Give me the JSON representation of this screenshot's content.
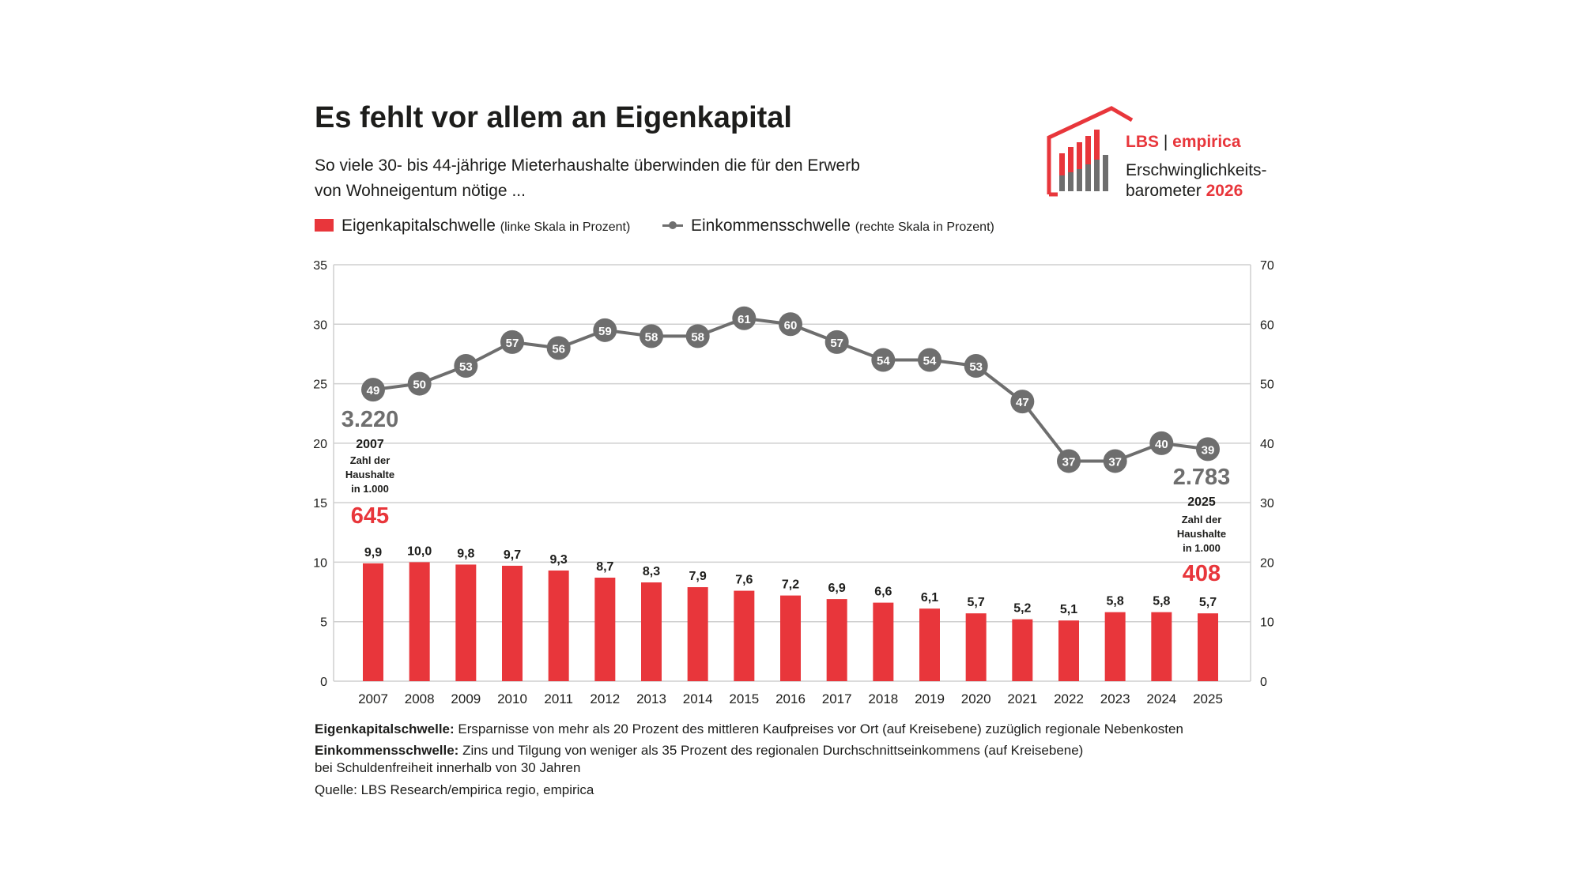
{
  "title": "Es fehlt vor allem an Eigenkapital",
  "subtitle_line1": "So viele 30- bis 44-jährige Mieterhaushalte überwinden die für den Erwerb",
  "subtitle_line2": "von Wohneigentum nötige ...",
  "legend": {
    "bar_label": "Eigenkapitalschwelle",
    "bar_note": "(linke Skala in Prozent)",
    "line_label": "Einkommensschwelle",
    "line_note": "(rechte Skala in Prozent)"
  },
  "logo": {
    "brand": "LBS",
    "separator": "|",
    "partner": "empirica",
    "line1": "Erschwinglichkeits-",
    "line2_prefix": "barometer",
    "year": "2026"
  },
  "annotations": {
    "start": {
      "households": "3.220",
      "year": "2007",
      "label_1": "Zahl der",
      "label_2": "Haushalte",
      "label_3": "in 1.000",
      "value": "645"
    },
    "end": {
      "households": "2.783",
      "year": "2025",
      "label_1": "Zahl der",
      "label_2": "Haushalte",
      "label_3": "in 1.000",
      "value": "408"
    }
  },
  "footnotes": {
    "eigen_term": "Eigenkapitalschwelle:",
    "eigen_text": "Ersparnisse von mehr als 20 Prozent des mittleren Kaufpreises vor Ort (auf Kreisebene) zuzüglich regionale Nebenkosten",
    "einkommen_term": "Einkommensschwelle:",
    "einkommen_text": "Zins und Tilgung von weniger als 35 Prozent des regionalen Durchschnittseinkommens (auf Kreisebene)",
    "einkommen_text2": "bei Schuldenfreiheit innerhalb von 30 Jahren",
    "source": "Quelle: LBS Research/empirica regio, empirica"
  },
  "colors": {
    "bar": "#e8363b",
    "line": "#6e6e6e",
    "grid": "#cfcfcf",
    "text": "#1d1d1b"
  },
  "chart_data": {
    "type": "bar",
    "categories": [
      "2007",
      "2008",
      "2009",
      "2010",
      "2011",
      "2012",
      "2013",
      "2014",
      "2015",
      "2016",
      "2017",
      "2018",
      "2019",
      "2020",
      "2021",
      "2022",
      "2023",
      "2024",
      "2025"
    ],
    "series": [
      {
        "name": "Eigenkapitalschwelle",
        "type": "bar",
        "axis": "left",
        "values": [
          9.9,
          10.0,
          9.8,
          9.7,
          9.3,
          8.7,
          8.3,
          7.9,
          7.6,
          7.2,
          6.9,
          6.6,
          6.1,
          5.7,
          5.2,
          5.1,
          5.8,
          5.8,
          5.7
        ],
        "labels": [
          "9,9",
          "10,0",
          "9,8",
          "9,7",
          "9,3",
          "8,7",
          "8,3",
          "7,9",
          "7,6",
          "7,2",
          "6,9",
          "6,6",
          "6,1",
          "5,7",
          "5,2",
          "5,1",
          "5,8",
          "5,8",
          "5,7"
        ]
      },
      {
        "name": "Einkommensschwelle",
        "type": "line",
        "axis": "right",
        "values": [
          49,
          50,
          53,
          57,
          56,
          59,
          58,
          58,
          61,
          60,
          57,
          54,
          54,
          53,
          47,
          37,
          37,
          40,
          39
        ],
        "labels": [
          "49",
          "50",
          "53",
          "57",
          "56",
          "59",
          "58",
          "58",
          "61",
          "60",
          "57",
          "54",
          "54",
          "53",
          "47",
          "37",
          "37",
          "40",
          "39"
        ]
      }
    ],
    "y_left": {
      "min": 0,
      "max": 35,
      "ticks": [
        "0",
        "5",
        "10",
        "15",
        "20",
        "25",
        "30",
        "35"
      ]
    },
    "y_right": {
      "min": 0,
      "max": 70,
      "ticks": [
        "0",
        "10",
        "20",
        "30",
        "40",
        "50",
        "60",
        "70"
      ]
    },
    "grid": true
  }
}
